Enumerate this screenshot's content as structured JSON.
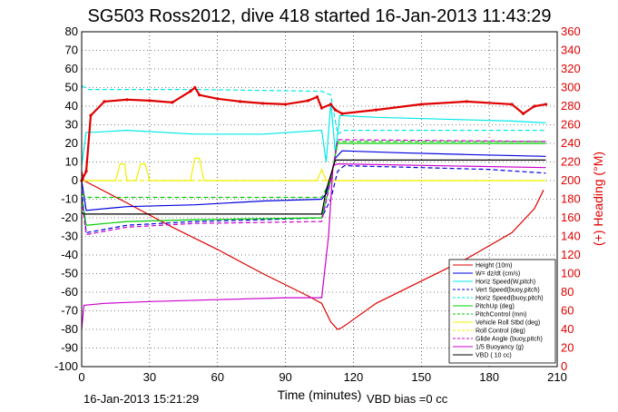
{
  "chart_data": {
    "type": "line",
    "title": "SG503 Ross2012, dive 418 started 16-Jan-2013 11:43:29",
    "xlabel": "Time (minutes)",
    "ylabel_right": "(+) Heading (°M)",
    "xlim": [
      0,
      210
    ],
    "ylim": [
      -100,
      80
    ],
    "ylim_right": [
      0,
      360
    ],
    "x_ticks": [
      "0",
      "30",
      "60",
      "90",
      "120",
      "150",
      "180",
      "210"
    ],
    "y_ticks": [
      "-100",
      "-90",
      "-80",
      "-70",
      "-60",
      "-50",
      "-40",
      "-30",
      "-20",
      "-10",
      "0",
      "10",
      "20",
      "30",
      "40",
      "50",
      "60",
      "70",
      "80"
    ],
    "y_ticks_right": [
      "0",
      "20",
      "40",
      "60",
      "80",
      "100",
      "120",
      "140",
      "160",
      "180",
      "200",
      "220",
      "240",
      "260",
      "280",
      "300",
      "320",
      "340",
      "360"
    ],
    "grid": true,
    "footer_left": "16-Jan-2013 15:21:29",
    "footer_right": "VBD bias =0 cc",
    "legend_position": "bottom-right",
    "colors": {
      "red": "#e00000",
      "blue": "#0000e0",
      "cyan": "#00e8e8",
      "green": "#00cc00",
      "yellow": "#f0f000",
      "magenta": "#cc00cc",
      "black": "#000000"
    },
    "series": [
      {
        "name": "Height (10m)",
        "color": "#e00000",
        "style": "solid",
        "x": [
          0,
          1,
          20,
          40,
          60,
          80,
          100,
          106,
          110,
          113,
          115,
          130,
          150,
          170,
          190,
          200,
          204
        ],
        "y": [
          5,
          0,
          -12,
          -25,
          -37,
          -50,
          -62,
          -66,
          -76,
          -80,
          -79,
          -66,
          -54,
          -42,
          -28,
          -15,
          -5
        ]
      },
      {
        "name": "W= dz/dt (cm/s)",
        "color": "#0000e0",
        "style": "solid",
        "x": [
          0,
          2,
          20,
          50,
          80,
          106,
          108,
          112,
          115,
          140,
          170,
          205
        ],
        "y": [
          0,
          -16,
          -14,
          -13,
          -11,
          -10,
          -7,
          12,
          16,
          15,
          14,
          13
        ]
      },
      {
        "name": "Horiz Speed(W,pitch)",
        "color": "#00e8e8",
        "style": "solid",
        "x": [
          0,
          2,
          6,
          20,
          50,
          80,
          106,
          108,
          110,
          112,
          114,
          130,
          160,
          190,
          205
        ],
        "y": [
          8,
          26,
          26,
          27,
          25,
          25,
          27,
          10,
          42,
          15,
          35,
          34,
          33,
          32,
          31
        ]
      },
      {
        "name": "Vert Speed(buoy,pitch)",
        "color": "#0000e0",
        "style": "dashed",
        "x": [
          0,
          2,
          20,
          50,
          80,
          106,
          110,
          113,
          116,
          150,
          180,
          205
        ],
        "y": [
          -5,
          -28,
          -24,
          -22,
          -21,
          -20,
          -10,
          5,
          8,
          7,
          6,
          4
        ]
      },
      {
        "name": "Horiz Speed(buoy,pitch)",
        "color": "#00e8e8",
        "style": "dashed",
        "x": [
          0,
          3,
          50,
          106,
          110,
          113,
          116,
          205
        ],
        "y": [
          51,
          49,
          49,
          48,
          46,
          25,
          27,
          27
        ]
      },
      {
        "name": "PitchUp (deg)",
        "color": "#00cc00",
        "style": "solid",
        "x": [
          0,
          2,
          20,
          50,
          106,
          110,
          113,
          205
        ],
        "y": [
          -9,
          -24,
          -22,
          -21,
          -20,
          0,
          20,
          20
        ]
      },
      {
        "name": "PitchControl (mm)",
        "color": "#00cc00",
        "style": "dashed",
        "x": [
          0,
          2,
          20,
          106,
          110,
          113,
          205
        ],
        "y": [
          -7,
          -9,
          -9,
          -9,
          0,
          21,
          21
        ]
      },
      {
        "name": "Vehicle Roll Stbd (deg)",
        "color": "#f0f000",
        "style": "solid",
        "x": [
          0,
          15,
          17,
          19,
          20,
          24,
          26,
          28,
          30,
          48,
          50,
          52,
          54,
          104,
          106,
          108,
          110,
          113,
          130,
          205
        ],
        "y": [
          0,
          0,
          9,
          9,
          0,
          0,
          9,
          9,
          0,
          0,
          12,
          12,
          0,
          0,
          6,
          0,
          0,
          0,
          0,
          0
        ]
      },
      {
        "name": "Roll Control (deg)",
        "color": "#f0f000",
        "style": "dashed",
        "x": [
          0,
          205
        ],
        "y": [
          0,
          0
        ]
      },
      {
        "name": "Glide Angle (buoy,pitch)",
        "color": "#cc00cc",
        "style": "dashed",
        "x": [
          0,
          2,
          20,
          50,
          106,
          110,
          113,
          205
        ],
        "y": [
          -10,
          -29,
          -25,
          -23,
          -22,
          0,
          22,
          21
        ]
      },
      {
        "name": "1/5 Buoyancy (g)",
        "color": "#cc00cc",
        "style": "solid",
        "x": [
          0,
          1,
          10,
          30,
          60,
          90,
          106,
          109,
          111,
          113,
          205
        ],
        "y": [
          -80,
          -67,
          -66,
          -65,
          -64,
          -63,
          -63,
          -30,
          8,
          9,
          7
        ]
      },
      {
        "name": "VBD ( 10 cc)",
        "color": "#000000",
        "style": "solid",
        "x": [
          0,
          1,
          106,
          108,
          112,
          205
        ],
        "y": [
          -17,
          -18,
          -18,
          -5,
          11,
          11
        ]
      },
      {
        "name": "Heading",
        "axis": "right",
        "color": "#e00000",
        "style": "dots",
        "x": [
          0,
          2,
          4,
          10,
          20,
          30,
          40,
          48,
          50,
          52,
          60,
          70,
          80,
          90,
          100,
          104,
          106,
          110,
          112,
          115,
          130,
          150,
          170,
          190,
          195,
          200,
          205
        ],
        "y": [
          200,
          210,
          270,
          285,
          287,
          286,
          284,
          296,
          300,
          292,
          288,
          285,
          283,
          282,
          286,
          290,
          278,
          282,
          276,
          272,
          276,
          282,
          285,
          282,
          272,
          280,
          282
        ]
      }
    ]
  }
}
